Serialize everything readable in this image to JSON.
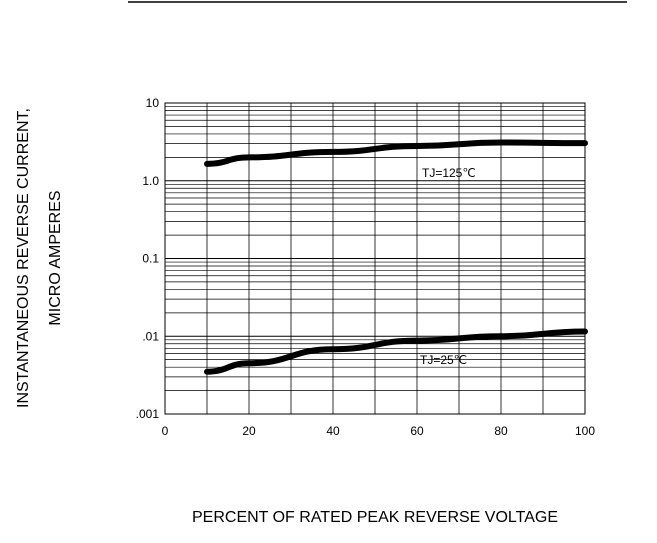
{
  "chart_data": {
    "type": "line",
    "title": "",
    "xlabel": "PERCENT OF RATED PEAK REVERSE VOLTAGE",
    "ylabel_line1": "INSTANTANEOUS REVERSE CURRENT,",
    "ylabel_line2": "MICRO AMPERES",
    "xlim": [
      0,
      100
    ],
    "ylim": [
      0.001,
      10
    ],
    "yscale": "log",
    "grid": true,
    "x_ticks": [
      0,
      20,
      40,
      60,
      80,
      100
    ],
    "x_tick_labels": [
      "0",
      "20",
      "40",
      "60",
      "80",
      "100"
    ],
    "y_ticks": [
      10,
      1,
      0.1,
      0.01,
      0.001
    ],
    "y_tick_labels": [
      "10",
      "1.0",
      "0.1",
      ".01",
      ".001"
    ],
    "series": [
      {
        "annotation": "TJ=125℃",
        "x": [
          10,
          20,
          40,
          60,
          80,
          100
        ],
        "y": [
          1.65,
          2.0,
          2.35,
          2.8,
          3.1,
          3.05
        ]
      },
      {
        "annotation": "TJ=25℃",
        "x": [
          10,
          20,
          40,
          60,
          80,
          100
        ],
        "y": [
          0.0035,
          0.0045,
          0.0068,
          0.0088,
          0.01,
          0.0115
        ]
      }
    ]
  }
}
